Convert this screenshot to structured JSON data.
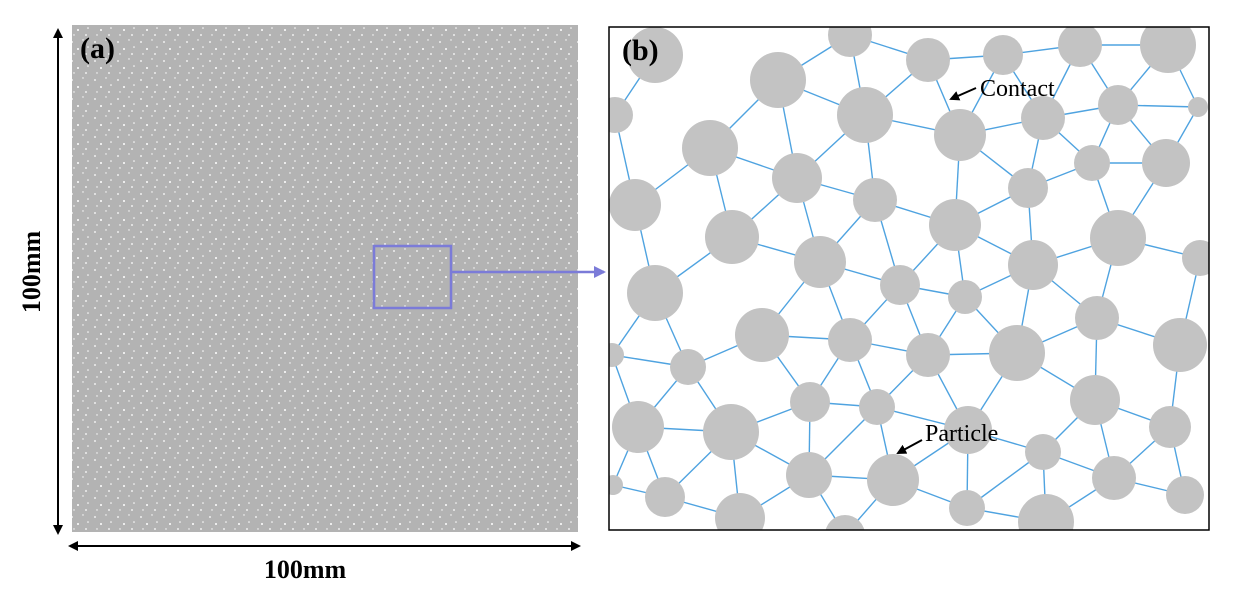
{
  "panels": [
    {
      "label": "(a)",
      "width_label": "100mm",
      "height_label": "100mm"
    },
    {
      "label": "(b)",
      "annotations": [
        "Contact",
        "Particle"
      ]
    }
  ]
}
